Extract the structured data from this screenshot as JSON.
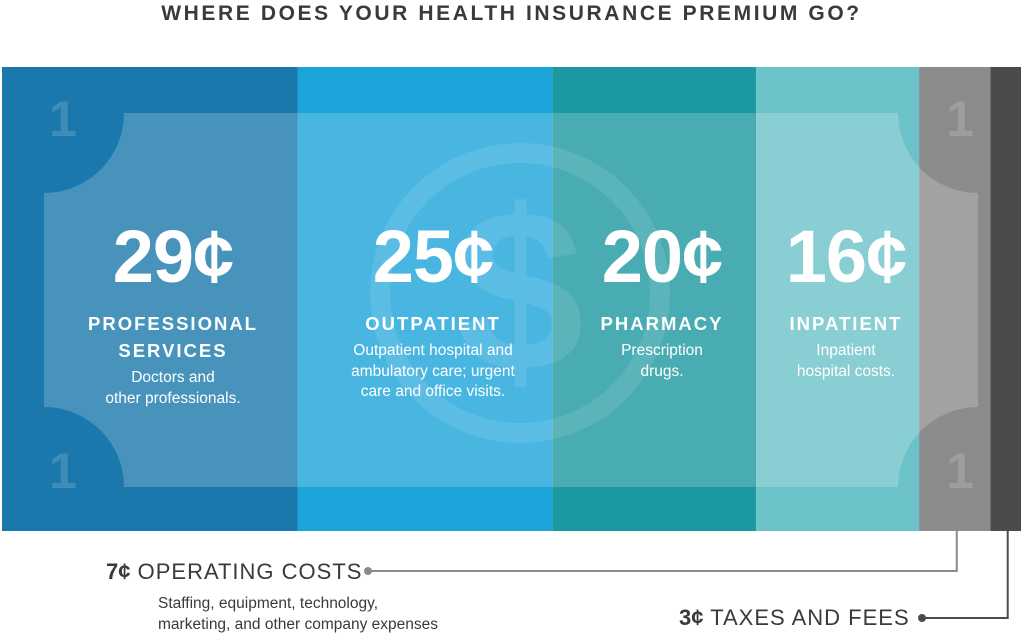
{
  "title": "WHERE DOES YOUR HEALTH INSURANCE PREMIUM GO?",
  "colors": {
    "professional": "#1a78ac",
    "outpatient": "#1ca3da",
    "pharmacy": "#1c98a0",
    "inpatient": "#6cc2c9",
    "operating": "#8a8b8b",
    "taxes": "#4a4b4c",
    "text_dark": "#3a3a3a"
  },
  "chart_data": {
    "type": "bar",
    "orientation": "stacked-horizontal",
    "unit": "¢",
    "total": 100,
    "segments": [
      {
        "amount": "29¢",
        "value": 29,
        "category": "PROFESSIONAL SERVICES",
        "description": "Doctors and other professionals."
      },
      {
        "amount": "25¢",
        "value": 25,
        "category": "OUTPATIENT",
        "description": "Outpatient hospital and ambulatory care; urgent care and office visits."
      },
      {
        "amount": "20¢",
        "value": 20,
        "category": "PHARMACY",
        "description": "Prescription drugs."
      },
      {
        "amount": "16¢",
        "value": 16,
        "category": "INPATIENT",
        "description": "Inpatient hospital costs."
      },
      {
        "amount": "7¢",
        "value": 7,
        "category": "OPERATING COSTS",
        "description": "Staffing, equipment, technology, marketing, and other company expenses"
      },
      {
        "amount": "3¢",
        "value": 3,
        "category": "TAXES AND FEES",
        "description": ""
      }
    ],
    "bill_numeral": "1",
    "dollar_symbol": "$"
  },
  "professional": {
    "amount": "29¢",
    "cat_line1": "PROFESSIONAL",
    "cat_line2": "SERVICES",
    "desc_line1": "Doctors and",
    "desc_line2": "other professionals."
  },
  "outpatient": {
    "amount": "25¢",
    "cat": "OUTPATIENT",
    "desc_line1": "Outpatient hospital and",
    "desc_line2": "ambulatory care; urgent",
    "desc_line3": "care and office visits."
  },
  "pharmacy": {
    "amount": "20¢",
    "cat": "PHARMACY",
    "desc_line1": "Prescription",
    "desc_line2": "drugs."
  },
  "inpatient": {
    "amount": "16¢",
    "cat": "INPATIENT",
    "desc_line1": "Inpatient",
    "desc_line2": "hospital costs."
  },
  "operating": {
    "amount": "7¢",
    "label": "OPERATING COSTS",
    "desc_line1": "Staffing, equipment, technology,",
    "desc_line2": "marketing, and other company expenses"
  },
  "taxes": {
    "amount": "3¢",
    "label": "TAXES AND FEES"
  }
}
